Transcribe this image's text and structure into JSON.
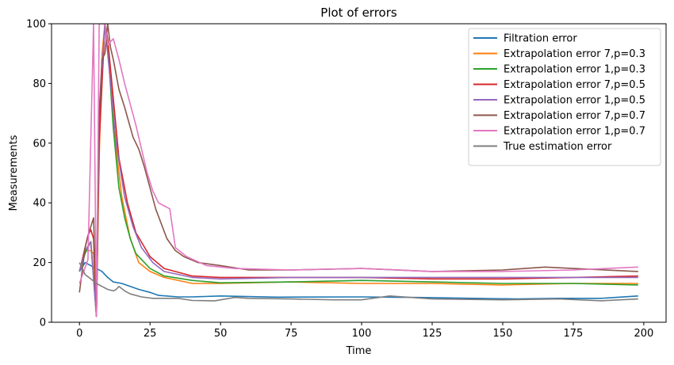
{
  "chart_data": {
    "type": "line",
    "title": "Plot of errors",
    "xlabel": "Time",
    "ylabel": "Measurements",
    "xlim": [
      -9.9,
      207.9
    ],
    "ylim": [
      0,
      100
    ],
    "xticks": [
      0,
      25,
      50,
      75,
      100,
      125,
      150,
      175,
      200
    ],
    "yticks": [
      0,
      20,
      40,
      60,
      80,
      100
    ],
    "legend_position": "top-right",
    "grid": false,
    "series": [
      {
        "name": "Filtration error",
        "color": "#1f77b4",
        "points": [
          [
            0,
            17
          ],
          [
            2,
            20
          ],
          [
            4,
            19
          ],
          [
            6,
            18
          ],
          [
            8,
            17
          ],
          [
            10,
            15
          ],
          [
            12,
            13.5
          ],
          [
            15,
            13
          ],
          [
            18,
            12
          ],
          [
            21,
            11
          ],
          [
            25,
            10
          ],
          [
            28,
            9
          ],
          [
            35,
            8.5
          ],
          [
            40,
            8.5
          ],
          [
            50,
            8.8
          ],
          [
            70,
            8.4
          ],
          [
            100,
            8.5
          ],
          [
            120,
            8.3
          ],
          [
            140,
            8
          ],
          [
            155,
            7.8
          ],
          [
            170,
            8
          ],
          [
            185,
            8
          ],
          [
            198,
            8.8
          ]
        ]
      },
      {
        "name": "Extrapolation error 7,p=0.3",
        "color": "#ff7f0e",
        "points": [
          [
            0,
            17
          ],
          [
            2,
            24
          ],
          [
            4,
            24
          ],
          [
            5,
            23
          ],
          [
            6,
            2
          ],
          [
            7,
            55
          ],
          [
            8,
            90
          ],
          [
            9,
            100
          ],
          [
            11,
            82
          ],
          [
            13,
            58
          ],
          [
            15,
            42
          ],
          [
            18,
            28
          ],
          [
            21,
            20
          ],
          [
            25,
            17
          ],
          [
            30,
            15
          ],
          [
            40,
            13
          ],
          [
            50,
            13
          ],
          [
            75,
            13.5
          ],
          [
            100,
            13
          ],
          [
            125,
            13
          ],
          [
            150,
            12.5
          ],
          [
            175,
            13
          ],
          [
            198,
            13
          ]
        ]
      },
      {
        "name": "Extrapolation error 1,p=0.3",
        "color": "#2ca02c",
        "points": [
          [
            0,
            17
          ],
          [
            2,
            23
          ],
          [
            4,
            27
          ],
          [
            6,
            2
          ],
          [
            7,
            65
          ],
          [
            9,
            100
          ],
          [
            10,
            93
          ],
          [
            12,
            65
          ],
          [
            14,
            45
          ],
          [
            16,
            35
          ],
          [
            18,
            28
          ],
          [
            20,
            23
          ],
          [
            25,
            18
          ],
          [
            30,
            15.5
          ],
          [
            40,
            14
          ],
          [
            50,
            13.2
          ],
          [
            75,
            13.5
          ],
          [
            100,
            14
          ],
          [
            125,
            13.5
          ],
          [
            150,
            13
          ],
          [
            175,
            13
          ],
          [
            198,
            12.5
          ]
        ]
      },
      {
        "name": "Extrapolation error 7,p=0.5",
        "color": "#d62728",
        "points": [
          [
            0,
            17
          ],
          [
            2,
            25
          ],
          [
            3,
            29
          ],
          [
            4,
            31
          ],
          [
            5,
            28
          ],
          [
            6,
            2
          ],
          [
            7,
            60
          ],
          [
            9,
            100
          ],
          [
            10,
            95
          ],
          [
            12,
            75
          ],
          [
            14,
            55
          ],
          [
            17,
            40
          ],
          [
            20,
            30
          ],
          [
            25,
            22
          ],
          [
            30,
            18
          ],
          [
            40,
            15.5
          ],
          [
            50,
            15
          ],
          [
            75,
            15
          ],
          [
            100,
            15
          ],
          [
            125,
            14.5
          ],
          [
            150,
            14.5
          ],
          [
            175,
            15
          ],
          [
            198,
            15.5
          ]
        ]
      },
      {
        "name": "Extrapolation error 1,p=0.5",
        "color": "#9467bd",
        "points": [
          [
            0,
            17
          ],
          [
            2,
            24
          ],
          [
            4,
            27
          ],
          [
            6,
            2
          ],
          [
            7,
            70
          ],
          [
            9,
            100
          ],
          [
            11,
            80
          ],
          [
            13,
            60
          ],
          [
            16,
            42
          ],
          [
            19,
            32
          ],
          [
            22,
            25
          ],
          [
            26,
            20
          ],
          [
            30,
            17
          ],
          [
            40,
            15
          ],
          [
            50,
            14.5
          ],
          [
            75,
            15
          ],
          [
            100,
            15
          ],
          [
            125,
            15
          ],
          [
            150,
            15
          ],
          [
            175,
            15
          ],
          [
            198,
            15
          ]
        ]
      },
      {
        "name": "Extrapolation error 7,p=0.7",
        "color": "#8c564b",
        "points": [
          [
            0,
            10
          ],
          [
            2,
            25
          ],
          [
            3,
            29
          ],
          [
            5,
            35
          ],
          [
            6,
            2
          ],
          [
            7,
            70
          ],
          [
            8,
            88
          ],
          [
            9,
            90
          ],
          [
            10,
            100
          ],
          [
            11,
            92
          ],
          [
            12,
            88
          ],
          [
            14,
            78
          ],
          [
            16,
            72
          ],
          [
            19,
            62
          ],
          [
            21,
            58
          ],
          [
            23,
            52
          ],
          [
            25,
            45
          ],
          [
            27,
            38
          ],
          [
            29,
            33
          ],
          [
            31,
            28
          ],
          [
            34,
            24
          ],
          [
            37,
            22
          ],
          [
            42,
            20
          ],
          [
            50,
            19
          ],
          [
            60,
            17.5
          ],
          [
            75,
            17.5
          ],
          [
            100,
            18
          ],
          [
            125,
            17
          ],
          [
            150,
            17.5
          ],
          [
            165,
            18.5
          ],
          [
            175,
            18
          ],
          [
            198,
            17
          ]
        ]
      },
      {
        "name": "Extrapolation error 1,p=0.7",
        "color": "#e377c2",
        "points": [
          [
            0,
            13
          ],
          [
            3,
            21
          ],
          [
            5,
            100
          ],
          [
            6,
            2
          ],
          [
            7,
            100
          ],
          [
            9,
            100
          ],
          [
            10,
            93
          ],
          [
            12,
            95
          ],
          [
            14,
            88
          ],
          [
            16,
            80
          ],
          [
            18,
            73
          ],
          [
            20,
            66
          ],
          [
            22,
            58
          ],
          [
            24,
            50
          ],
          [
            26,
            44
          ],
          [
            28,
            40
          ],
          [
            30,
            39
          ],
          [
            32,
            38
          ],
          [
            34,
            25
          ],
          [
            38,
            22
          ],
          [
            45,
            19
          ],
          [
            55,
            18
          ],
          [
            75,
            17.5
          ],
          [
            100,
            18
          ],
          [
            125,
            17
          ],
          [
            150,
            17
          ],
          [
            175,
            17.5
          ],
          [
            198,
            18.5
          ]
        ]
      },
      {
        "name": "True estimation error",
        "color": "#7f7f7f",
        "points": [
          [
            0,
            20
          ],
          [
            2,
            16
          ],
          [
            4,
            14.5
          ],
          [
            6,
            13
          ],
          [
            8,
            12
          ],
          [
            10,
            11
          ],
          [
            12,
            10.5
          ],
          [
            13,
            11
          ],
          [
            14,
            12
          ],
          [
            16,
            10.5
          ],
          [
            18,
            9.5
          ],
          [
            22,
            8.5
          ],
          [
            26,
            8
          ],
          [
            30,
            8
          ],
          [
            35,
            8
          ],
          [
            40,
            7.3
          ],
          [
            48,
            7.2
          ],
          [
            55,
            8.3
          ],
          [
            60,
            8
          ],
          [
            75,
            7.8
          ],
          [
            90,
            7.5
          ],
          [
            100,
            7.5
          ],
          [
            110,
            8.8
          ],
          [
            125,
            7.8
          ],
          [
            150,
            7.5
          ],
          [
            170,
            7.8
          ],
          [
            185,
            7.2
          ],
          [
            198,
            7.8
          ]
        ]
      }
    ]
  }
}
